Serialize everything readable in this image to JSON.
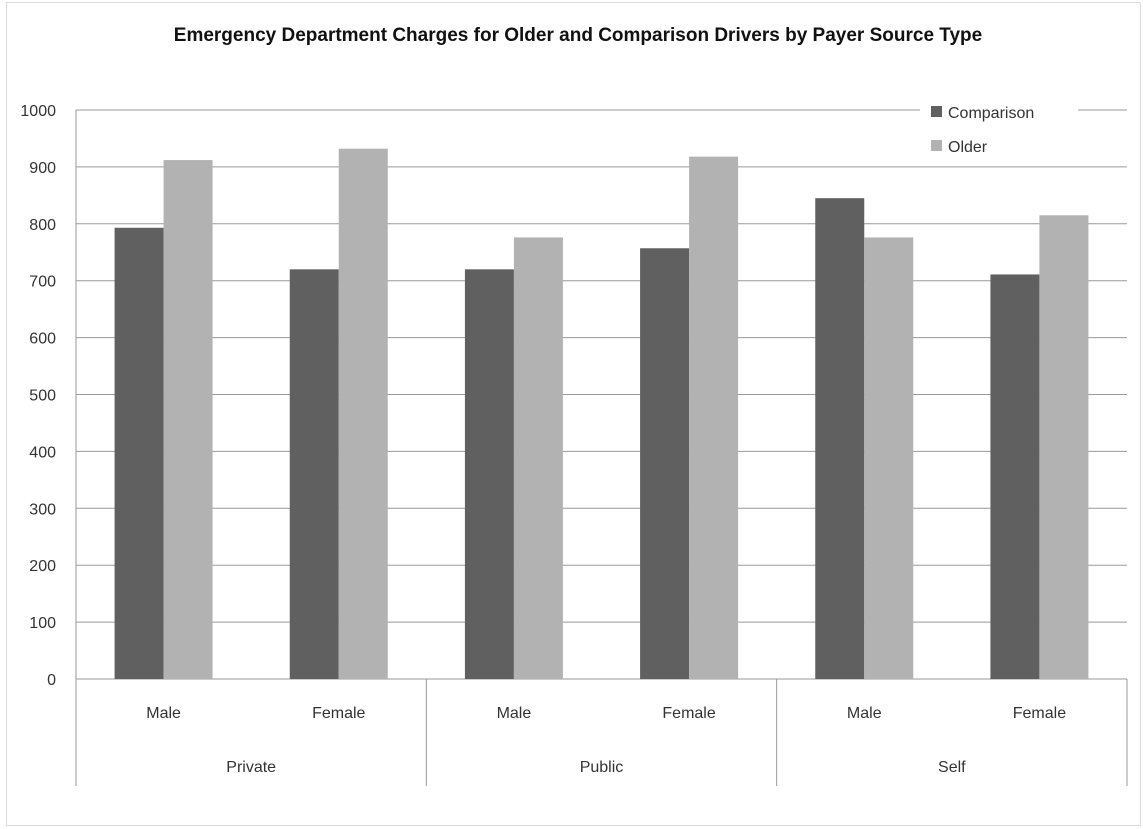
{
  "chart_data": {
    "type": "bar",
    "title": "Emergency Department Charges for Older and Comparison Drivers by Payer Source Type",
    "xlabel": "",
    "ylabel": "",
    "ylim": [
      0,
      1000
    ],
    "yticks": [
      0,
      100,
      200,
      300,
      400,
      500,
      600,
      700,
      800,
      900,
      1000
    ],
    "grid": true,
    "legend_position": "top-right",
    "categories": [
      "Male",
      "Female",
      "Male",
      "Female",
      "Male",
      "Female"
    ],
    "groups": [
      {
        "label": "Private",
        "span": 2
      },
      {
        "label": "Public",
        "span": 2
      },
      {
        "label": "Self",
        "span": 2
      }
    ],
    "series": [
      {
        "name": "Comparison",
        "color": "#606060",
        "values": [
          793,
          720,
          720,
          757,
          845,
          711
        ]
      },
      {
        "name": "Older",
        "color": "#b2b2b2",
        "values": [
          912,
          932,
          776,
          918,
          776,
          815
        ]
      }
    ]
  }
}
